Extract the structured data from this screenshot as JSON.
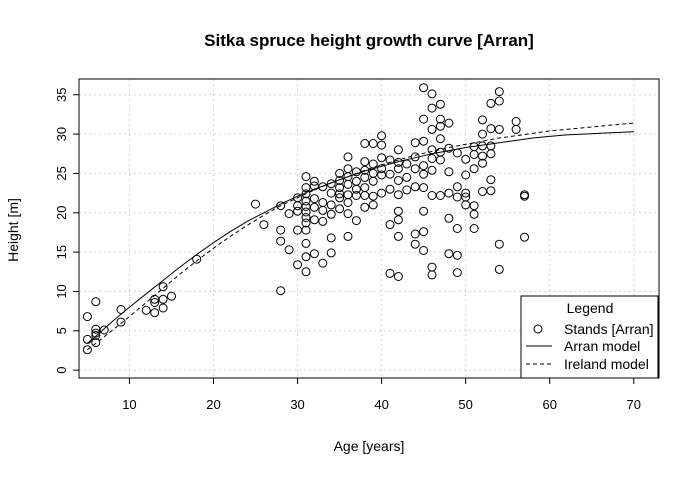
{
  "chart_data": {
    "type": "scatter",
    "title": "Sitka spruce height growth curve [Arran]",
    "xlabel": "Age [years]",
    "ylabel": "Height [m]",
    "xlim": [
      4,
      73
    ],
    "ylim": [
      -1,
      37
    ],
    "x_ticks": [
      10,
      20,
      30,
      40,
      50,
      60,
      70
    ],
    "y_ticks": [
      0,
      5,
      10,
      15,
      20,
      25,
      30,
      35
    ],
    "grid": true,
    "legend": {
      "title": "Legend",
      "placement": "bottom-right",
      "entries": [
        "Stands [Arran]",
        "Arran model",
        "Ireland model"
      ]
    },
    "series": [
      {
        "name": "Stands [Arran]",
        "kind": "points",
        "color": "#000000",
        "points": [
          [
            5,
            6.8
          ],
          [
            5,
            3.9
          ],
          [
            5,
            2.6
          ],
          [
            6,
            8.7
          ],
          [
            6,
            5.2
          ],
          [
            6,
            4.7
          ],
          [
            6,
            4.4
          ],
          [
            6,
            3.5
          ],
          [
            7,
            5.1
          ],
          [
            9,
            7.7
          ],
          [
            9,
            6.1
          ],
          [
            12,
            7.6
          ],
          [
            13,
            9.0
          ],
          [
            13,
            8.6
          ],
          [
            13,
            7.3
          ],
          [
            14,
            10.6
          ],
          [
            14,
            9.0
          ],
          [
            14,
            7.9
          ],
          [
            15,
            9.4
          ],
          [
            18,
            14.1
          ],
          [
            25,
            21.1
          ],
          [
            26,
            18.5
          ],
          [
            28,
            20.9
          ],
          [
            28,
            17.8
          ],
          [
            28,
            16.4
          ],
          [
            28,
            10.1
          ],
          [
            29,
            19.9
          ],
          [
            29,
            15.3
          ],
          [
            30,
            21.9
          ],
          [
            30,
            20.9
          ],
          [
            30,
            20.2
          ],
          [
            30,
            17.8
          ],
          [
            30,
            13.4
          ],
          [
            31,
            24.6
          ],
          [
            31,
            23.2
          ],
          [
            31,
            22.4
          ],
          [
            31,
            21.5
          ],
          [
            31,
            20.8
          ],
          [
            31,
            20.1
          ],
          [
            31,
            19.4
          ],
          [
            31,
            18.7
          ],
          [
            31,
            17.8
          ],
          [
            31,
            16.1
          ],
          [
            31,
            14.4
          ],
          [
            31,
            12.5
          ],
          [
            32,
            24.0
          ],
          [
            32,
            23.4
          ],
          [
            32,
            21.8
          ],
          [
            32,
            20.7
          ],
          [
            32,
            19.1
          ],
          [
            32,
            14.8
          ],
          [
            33,
            23.3
          ],
          [
            33,
            21.3
          ],
          [
            33,
            20.3
          ],
          [
            33,
            18.9
          ],
          [
            33,
            13.6
          ],
          [
            34,
            23.7
          ],
          [
            34,
            22.5
          ],
          [
            34,
            21.0
          ],
          [
            34,
            19.8
          ],
          [
            34,
            16.8
          ],
          [
            34,
            14.9
          ],
          [
            35,
            25.0
          ],
          [
            35,
            24.1
          ],
          [
            35,
            23.2
          ],
          [
            35,
            22.4
          ],
          [
            35,
            21.9
          ],
          [
            35,
            20.5
          ],
          [
            36,
            27.1
          ],
          [
            36,
            25.6
          ],
          [
            36,
            24.6
          ],
          [
            36,
            23.6
          ],
          [
            36,
            22.3
          ],
          [
            36,
            21.3
          ],
          [
            36,
            19.9
          ],
          [
            36,
            17.0
          ],
          [
            37,
            25.2
          ],
          [
            37,
            24.0
          ],
          [
            37,
            23.0
          ],
          [
            37,
            22.2
          ],
          [
            37,
            19.0
          ],
          [
            38,
            28.8
          ],
          [
            38,
            26.5
          ],
          [
            38,
            25.4
          ],
          [
            38,
            24.5
          ],
          [
            38,
            23.2
          ],
          [
            38,
            22.2
          ],
          [
            38,
            20.7
          ],
          [
            39,
            28.8
          ],
          [
            39,
            26.2
          ],
          [
            39,
            25.0
          ],
          [
            39,
            24.0
          ],
          [
            39,
            22.1
          ],
          [
            39,
            21.0
          ],
          [
            40,
            29.8
          ],
          [
            40,
            28.6
          ],
          [
            40,
            27.0
          ],
          [
            40,
            25.6
          ],
          [
            40,
            24.8
          ],
          [
            40,
            22.5
          ],
          [
            41,
            26.7
          ],
          [
            41,
            24.9
          ],
          [
            41,
            23.0
          ],
          [
            41,
            18.5
          ],
          [
            41,
            12.3
          ],
          [
            42,
            28.0
          ],
          [
            42,
            26.4
          ],
          [
            42,
            25.6
          ],
          [
            42,
            24.1
          ],
          [
            42,
            22.3
          ],
          [
            42,
            20.2
          ],
          [
            42,
            19.1
          ],
          [
            42,
            17.0
          ],
          [
            42,
            11.9
          ],
          [
            43,
            26.2
          ],
          [
            43,
            24.5
          ],
          [
            43,
            22.9
          ],
          [
            44,
            28.9
          ],
          [
            44,
            27.1
          ],
          [
            44,
            25.6
          ],
          [
            44,
            23.3
          ],
          [
            44,
            17.3
          ],
          [
            44,
            16.0
          ],
          [
            45,
            35.9
          ],
          [
            45,
            31.9
          ],
          [
            45,
            29.1
          ],
          [
            45,
            26.0
          ],
          [
            45,
            24.9
          ],
          [
            45,
            23.2
          ],
          [
            45,
            20.2
          ],
          [
            45,
            17.6
          ],
          [
            45,
            15.2
          ],
          [
            46,
            35.1
          ],
          [
            46,
            33.3
          ],
          [
            46,
            30.6
          ],
          [
            46,
            28.0
          ],
          [
            46,
            26.9
          ],
          [
            46,
            25.4
          ],
          [
            46,
            22.2
          ],
          [
            46,
            13.1
          ],
          [
            46,
            12.1
          ],
          [
            47,
            33.8
          ],
          [
            47,
            31.9
          ],
          [
            47,
            31.0
          ],
          [
            47,
            29.4
          ],
          [
            47,
            27.7
          ],
          [
            47,
            26.7
          ],
          [
            47,
            22.2
          ],
          [
            48,
            31.4
          ],
          [
            48,
            28.2
          ],
          [
            48,
            25.2
          ],
          [
            48,
            22.5
          ],
          [
            48,
            19.3
          ],
          [
            48,
            14.8
          ],
          [
            49,
            27.6
          ],
          [
            49,
            23.3
          ],
          [
            49,
            22.0
          ],
          [
            49,
            18.0
          ],
          [
            49,
            14.6
          ],
          [
            49,
            12.4
          ],
          [
            50,
            26.8
          ],
          [
            50,
            24.8
          ],
          [
            50,
            22.5
          ],
          [
            50,
            22.0
          ],
          [
            50,
            21.0
          ],
          [
            51,
            28.4
          ],
          [
            51,
            27.4
          ],
          [
            51,
            25.6
          ],
          [
            51,
            20.9
          ],
          [
            51,
            18.0
          ],
          [
            51,
            19.8
          ],
          [
            52,
            31.8
          ],
          [
            52,
            30.0
          ],
          [
            52,
            28.5
          ],
          [
            52,
            27.2
          ],
          [
            52,
            26.3
          ],
          [
            52,
            22.7
          ],
          [
            53,
            33.9
          ],
          [
            53,
            30.7
          ],
          [
            53,
            28.5
          ],
          [
            53,
            27.5
          ],
          [
            53,
            24.2
          ],
          [
            53,
            22.8
          ],
          [
            54,
            35.4
          ],
          [
            54,
            34.2
          ],
          [
            54,
            30.6
          ],
          [
            54,
            16.0
          ],
          [
            54,
            12.8
          ],
          [
            56,
            31.6
          ],
          [
            56,
            30.6
          ],
          [
            57,
            22.3
          ],
          [
            57,
            22.1
          ],
          [
            57,
            16.9
          ]
        ]
      },
      {
        "name": "Arran model",
        "kind": "line",
        "dash": "solid",
        "x": [
          5,
          6,
          8,
          10,
          12,
          14,
          16,
          18,
          20,
          22,
          24,
          26,
          28,
          30,
          32,
          34,
          36,
          38,
          40,
          42,
          44,
          46,
          48,
          50,
          52,
          54,
          56,
          58,
          60,
          62,
          64,
          66,
          68,
          70
        ],
        "y": [
          3.4,
          4.3,
          6.2,
          8.0,
          9.7,
          11.4,
          13.1,
          14.7,
          16.2,
          17.6,
          18.9,
          20.0,
          21.1,
          22.1,
          23.0,
          23.8,
          24.6,
          25.3,
          25.9,
          26.5,
          27.0,
          27.5,
          27.9,
          28.3,
          28.6,
          28.9,
          29.2,
          29.5,
          29.7,
          29.9,
          30.0,
          30.1,
          30.2,
          30.3
        ]
      },
      {
        "name": "Ireland model",
        "kind": "line",
        "dash": "dashed",
        "x": [
          5,
          6,
          8,
          10,
          12,
          14,
          16,
          18,
          20,
          22,
          24,
          26,
          28,
          30,
          32,
          34,
          36,
          38,
          40,
          42,
          44,
          46,
          48,
          50,
          52,
          54,
          56,
          58,
          60,
          62,
          64,
          66,
          68,
          70
        ],
        "y": [
          2.6,
          3.4,
          5.1,
          6.8,
          8.6,
          10.4,
          12.2,
          13.9,
          15.5,
          17.0,
          18.4,
          19.7,
          20.9,
          21.9,
          22.9,
          23.8,
          24.6,
          25.4,
          26.1,
          26.7,
          27.3,
          27.8,
          28.3,
          28.7,
          29.1,
          29.5,
          29.8,
          30.1,
          30.4,
          30.6,
          30.8,
          31.0,
          31.2,
          31.4
        ]
      }
    ]
  }
}
